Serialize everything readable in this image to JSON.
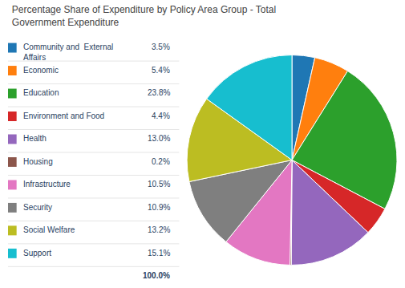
{
  "chart_data": {
    "type": "pie",
    "title": "Percentage Share of Expenditure by Policy Area Group - Total Government Expenditure",
    "categories": [
      "Community and  External\nAffairs",
      "Economic",
      "Education",
      "Environment and Food",
      "Health",
      "Housing",
      "Infrastructure",
      "Security",
      "Social Welfare",
      "Support"
    ],
    "values": [
      3.5,
      5.4,
      23.8,
      4.4,
      13.0,
      0.2,
      10.5,
      10.9,
      13.2,
      15.1
    ],
    "value_labels": [
      "3.5%",
      "5.4%",
      "23.8%",
      "4.4%",
      "13.0%",
      "0.2%",
      "10.5%",
      "10.9%",
      "13.2%",
      "15.1%"
    ],
    "annotations": [
      "100.0%"
    ],
    "legend": "left"
  }
}
